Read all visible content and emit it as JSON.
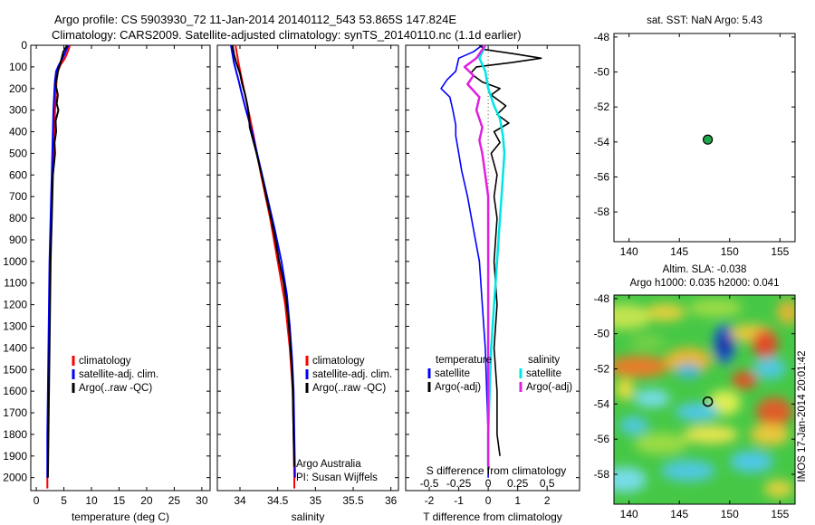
{
  "header": {
    "title_line1": "Argo profile: CS 5903930_72 11-Jan-2014 20140112_543 53.865S 147.824E",
    "title_line2": "Climatology: CARS2009. Satellite-adjusted climatology: synTS_20140110.nc (1.1d earlier)"
  },
  "colors": {
    "climatology": "#ff0000",
    "satellite": "#0000ff",
    "argo": "#000000",
    "salinity_satellite": "#00e5e5",
    "salinity_argo": "#e020e0",
    "map_dot": "#1fa84a"
  },
  "depth_axis": {
    "ticks": [
      0,
      100,
      200,
      300,
      400,
      500,
      600,
      700,
      800,
      900,
      1000,
      1100,
      1200,
      1300,
      1400,
      1500,
      1600,
      1700,
      1800,
      1900,
      2000
    ],
    "range": [
      0,
      2060
    ]
  },
  "chart_data": [
    {
      "id": "temperature",
      "type": "line",
      "xlabel": "temperature (deg C)",
      "xlim": [
        -1,
        31.5
      ],
      "xticks": [
        0,
        5,
        10,
        15,
        20,
        25,
        30
      ],
      "legend": [
        "climatology",
        "satellite-adj. clim.",
        "Argo(..raw -QC)"
      ],
      "series": [
        {
          "name": "climatology",
          "color": "#ff0000",
          "points": [
            [
              6.1,
              0
            ],
            [
              5.7,
              30
            ],
            [
              5.2,
              60
            ],
            [
              4.4,
              90
            ],
            [
              3.9,
              120
            ],
            [
              3.7,
              160
            ],
            [
              3.6,
              200
            ],
            [
              3.5,
              250
            ],
            [
              3.4,
              300
            ],
            [
              3.3,
              400
            ],
            [
              3.1,
              500
            ],
            [
              2.9,
              600
            ],
            [
              2.8,
              700
            ],
            [
              2.7,
              800
            ],
            [
              2.6,
              900
            ],
            [
              2.5,
              1000
            ],
            [
              2.4,
              1200
            ],
            [
              2.3,
              1400
            ],
            [
              2.2,
              1600
            ],
            [
              2.1,
              1800
            ],
            [
              2.0,
              2000
            ],
            [
              2.0,
              2050
            ]
          ]
        },
        {
          "name": "satellite-adj. clim.",
          "color": "#0000ff",
          "points": [
            [
              5.8,
              0
            ],
            [
              5.3,
              30
            ],
            [
              4.8,
              60
            ],
            [
              4.1,
              90
            ],
            [
              3.6,
              120
            ],
            [
              3.4,
              160
            ],
            [
              3.3,
              200
            ],
            [
              3.2,
              250
            ],
            [
              3.1,
              300
            ],
            [
              3.0,
              400
            ],
            [
              2.9,
              500
            ],
            [
              2.8,
              600
            ],
            [
              2.7,
              700
            ],
            [
              2.6,
              800
            ],
            [
              2.5,
              900
            ],
            [
              2.4,
              1000
            ],
            [
              2.3,
              1200
            ],
            [
              2.2,
              1400
            ],
            [
              2.1,
              1600
            ],
            [
              2.0,
              1800
            ],
            [
              2.0,
              2000
            ]
          ]
        },
        {
          "name": "Argo(..raw -QC)",
          "color": "#000000",
          "points": [
            [
              5.6,
              0
            ],
            [
              4.9,
              30
            ],
            [
              4.6,
              60
            ],
            [
              4.3,
              90
            ],
            [
              4.0,
              110
            ],
            [
              3.8,
              140
            ],
            [
              3.5,
              180
            ],
            [
              3.9,
              230
            ],
            [
              3.7,
              270
            ],
            [
              4.0,
              300
            ],
            [
              3.5,
              350
            ],
            [
              3.6,
              400
            ],
            [
              3.3,
              450
            ],
            [
              3.4,
              500
            ],
            [
              3.0,
              600
            ],
            [
              2.9,
              700
            ],
            [
              2.8,
              800
            ],
            [
              2.7,
              900
            ],
            [
              2.6,
              1000
            ],
            [
              2.5,
              1200
            ],
            [
              2.4,
              1400
            ],
            [
              2.3,
              1600
            ],
            [
              2.2,
              1800
            ],
            [
              2.1,
              2000
            ]
          ]
        }
      ]
    },
    {
      "id": "salinity",
      "type": "line",
      "xlabel": "salinity",
      "xlim": [
        33.7,
        36.1
      ],
      "xticks": [
        34,
        34.5,
        35,
        35.5,
        36
      ],
      "legend": [
        "climatology",
        "satellite-adj. clim.",
        "Argo(..raw -QC)"
      ],
      "annotation": [
        "Argo Australia",
        "PI: Susan Wijffels"
      ],
      "series": [
        {
          "name": "climatology",
          "color": "#ff0000",
          "points": [
            [
              33.94,
              0
            ],
            [
              33.96,
              40
            ],
            [
              33.98,
              80
            ],
            [
              34.02,
              150
            ],
            [
              34.08,
              250
            ],
            [
              34.17,
              400
            ],
            [
              34.28,
              600
            ],
            [
              34.4,
              800
            ],
            [
              34.5,
              1000
            ],
            [
              34.6,
              1200
            ],
            [
              34.66,
              1400
            ],
            [
              34.7,
              1600
            ],
            [
              34.71,
              1800
            ],
            [
              34.72,
              2000
            ],
            [
              34.72,
              2050
            ]
          ]
        },
        {
          "name": "satellite-adj. clim.",
          "color": "#0000ff",
          "points": [
            [
              33.88,
              0
            ],
            [
              33.9,
              40
            ],
            [
              33.92,
              80
            ],
            [
              33.95,
              120
            ],
            [
              33.98,
              160
            ],
            [
              34.02,
              220
            ],
            [
              34.08,
              300
            ],
            [
              34.16,
              400
            ],
            [
              34.26,
              550
            ],
            [
              34.36,
              700
            ],
            [
              34.46,
              850
            ],
            [
              34.55,
              1000
            ],
            [
              34.62,
              1150
            ],
            [
              34.66,
              1300
            ],
            [
              34.69,
              1450
            ],
            [
              34.71,
              1600
            ],
            [
              34.72,
              1800
            ],
            [
              34.73,
              2000
            ]
          ]
        },
        {
          "name": "Argo(..raw -QC)",
          "color": "#000000",
          "points": [
            [
              33.9,
              0
            ],
            [
              33.92,
              40
            ],
            [
              33.95,
              80
            ],
            [
              34.0,
              130
            ],
            [
              34.03,
              180
            ],
            [
              34.07,
              230
            ],
            [
              34.1,
              280
            ],
            [
              34.12,
              330
            ],
            [
              34.13,
              380
            ],
            [
              34.16,
              420
            ],
            [
              34.22,
              500
            ],
            [
              34.3,
              620
            ],
            [
              34.38,
              750
            ],
            [
              34.46,
              880
            ],
            [
              34.52,
              1000
            ],
            [
              34.58,
              1100
            ],
            [
              34.62,
              1200
            ],
            [
              34.65,
              1300
            ],
            [
              34.67,
              1400
            ],
            [
              34.69,
              1500
            ],
            [
              34.7,
              1600
            ],
            [
              34.71,
              1800
            ],
            [
              34.72,
              1950
            ]
          ]
        }
      ]
    },
    {
      "id": "difference",
      "type": "line",
      "xlabel": "T difference from climatology",
      "xlabel_top": "S difference from climatology",
      "xlim": [
        -2.8,
        3.1
      ],
      "xticks": [
        -2,
        -1,
        0,
        1,
        2
      ],
      "xticks_top": [
        "-0.5",
        "-0.25",
        "0",
        "0.25",
        "0.5"
      ],
      "legend_temperature": [
        "temperature",
        "satellite",
        "Argo(-adj)"
      ],
      "legend_salinity": [
        "salinity",
        "satellite",
        "Argo(-adj)"
      ],
      "series": [
        {
          "name": "satellite",
          "group": "temperature",
          "color": "#0000ff",
          "points": [
            [
              -0.2,
              0
            ],
            [
              -0.5,
              30
            ],
            [
              -1.0,
              60
            ],
            [
              -1.1,
              120
            ],
            [
              -1.4,
              160
            ],
            [
              -1.6,
              200
            ],
            [
              -1.3,
              240
            ],
            [
              -1.2,
              300
            ],
            [
              -1.1,
              370
            ],
            [
              -1.1,
              420
            ],
            [
              -1.0,
              500
            ],
            [
              -0.9,
              580
            ],
            [
              -0.7,
              700
            ],
            [
              -0.5,
              850
            ],
            [
              -0.3,
              1000
            ],
            [
              -0.2,
              1200
            ],
            [
              -0.1,
              1400
            ],
            [
              -0.05,
              1600
            ],
            [
              0,
              1800
            ],
            [
              0,
              2000
            ]
          ]
        },
        {
          "name": "Argo(-adj)",
          "group": "temperature",
          "color": "#000000",
          "points": [
            [
              -0.3,
              0
            ],
            [
              -0.1,
              20
            ],
            [
              0.9,
              40
            ],
            [
              1.8,
              60
            ],
            [
              0.8,
              80
            ],
            [
              -0.4,
              100
            ],
            [
              -0.6,
              130
            ],
            [
              -0.2,
              170
            ],
            [
              0.4,
              200
            ],
            [
              0.1,
              230
            ],
            [
              0.6,
              280
            ],
            [
              0.3,
              320
            ],
            [
              0.7,
              360
            ],
            [
              0.2,
              400
            ],
            [
              0.4,
              450
            ],
            [
              0.1,
              500
            ],
            [
              0.3,
              600
            ],
            [
              0.2,
              700
            ],
            [
              0.3,
              800
            ],
            [
              0.2,
              1000
            ],
            [
              0.3,
              1200
            ],
            [
              0.2,
              1400
            ],
            [
              0.3,
              1600
            ],
            [
              0.3,
              1800
            ],
            [
              0.4,
              1900
            ]
          ]
        },
        {
          "name": "satellite",
          "group": "salinity",
          "color": "#00e5e5",
          "points": [
            [
              -0.1,
              0
            ],
            [
              -0.3,
              60
            ],
            [
              -0.1,
              120
            ],
            [
              0.0,
              200
            ],
            [
              0.2,
              280
            ],
            [
              0.4,
              340
            ],
            [
              0.5,
              420
            ],
            [
              0.55,
              500
            ],
            [
              0.5,
              600
            ],
            [
              0.45,
              700
            ],
            [
              0.4,
              800
            ],
            [
              0.35,
              900
            ],
            [
              0.3,
              1000
            ],
            [
              0.2,
              1200
            ],
            [
              0.1,
              1400
            ],
            [
              0.05,
              1600
            ],
            [
              0,
              1800
            ],
            [
              0,
              1950
            ]
          ]
        },
        {
          "name": "Argo(-adj)",
          "group": "salinity",
          "color": "#e020e0",
          "points": [
            [
              -0.1,
              0
            ],
            [
              -0.4,
              60
            ],
            [
              -0.8,
              100
            ],
            [
              -0.5,
              140
            ],
            [
              -0.7,
              180
            ],
            [
              -0.3,
              240
            ],
            [
              -0.4,
              300
            ],
            [
              -0.2,
              380
            ],
            [
              -0.3,
              440
            ],
            [
              -0.2,
              500
            ],
            [
              -0.1,
              600
            ],
            [
              0.0,
              700
            ],
            [
              0.0,
              800
            ],
            [
              0.0,
              1000
            ],
            [
              0.0,
              1200
            ],
            [
              0.0,
              1400
            ],
            [
              0.0,
              1600
            ],
            [
              0.0,
              1800
            ],
            [
              0.0,
              1950
            ]
          ]
        }
      ]
    },
    {
      "id": "sst_map",
      "type": "scatter",
      "title": "sat. SST: NaN Argo: 5.43",
      "xlim": [
        138.5,
        156.5
      ],
      "ylim": [
        -59.7,
        -47.8
      ],
      "xticks": [
        140,
        145,
        150,
        155
      ],
      "yticks": [
        -48,
        -50,
        -52,
        -54,
        -56,
        -58
      ],
      "points": [
        [
          147.824,
          -53.865
        ]
      ]
    },
    {
      "id": "sla_map",
      "type": "heatmap",
      "title_line1": "Altim. SLA: -0.038",
      "title_line2": "Argo h1000: 0.035 h2000: 0.041",
      "xlim": [
        138.5,
        156.5
      ],
      "ylim": [
        -59.7,
        -47.8
      ],
      "xticks": [
        140,
        145,
        150,
        155
      ],
      "yticks": [
        -48,
        -50,
        -52,
        -54,
        -56,
        -58
      ],
      "points": [
        [
          147.824,
          -53.865
        ]
      ],
      "side_label": "IMOS 17-Jan-2014 20:01:42"
    }
  ]
}
